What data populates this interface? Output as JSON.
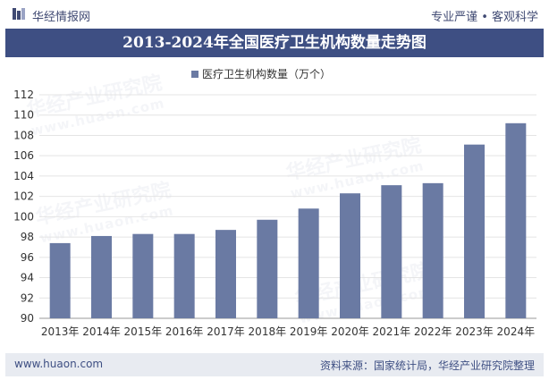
{
  "header": {
    "logo_text": "华经情报网",
    "slogan": "专业严谨 • 客观科学"
  },
  "title": "2013-2024年全国医疗卫生机构数量走势图",
  "chart_data": {
    "type": "bar",
    "title": "2013-2024年全国医疗卫生机构数量走势图",
    "series_name": "医疗卫生机构数量（万个）",
    "categories": [
      "2013年",
      "2014年",
      "2015年",
      "2016年",
      "2017年",
      "2018年",
      "2019年",
      "2020年",
      "2021年",
      "2022年",
      "2023年",
      "2024年"
    ],
    "values": [
      97.4,
      98.1,
      98.3,
      98.3,
      98.7,
      99.7,
      100.8,
      102.3,
      103.1,
      103.3,
      107.1,
      109.2
    ],
    "ylim": [
      90,
      112
    ],
    "yticks": [
      90,
      92,
      94,
      96,
      98,
      100,
      102,
      104,
      106,
      108,
      110,
      112
    ],
    "xlabel": "",
    "ylabel": "",
    "bar_color": "#6a7aa3",
    "legend_position": "top-center"
  },
  "footer": {
    "site": "www.huaon.com",
    "source": "资料来源：国家统计局，华经产业研究院整理"
  },
  "watermark": {
    "text": "华经产业研究院",
    "url": "www.huaon.com"
  },
  "colors": {
    "title_bg": "#3e4f83",
    "bar": "#6a7aa3",
    "footer_bg": "#e8ebf1"
  }
}
